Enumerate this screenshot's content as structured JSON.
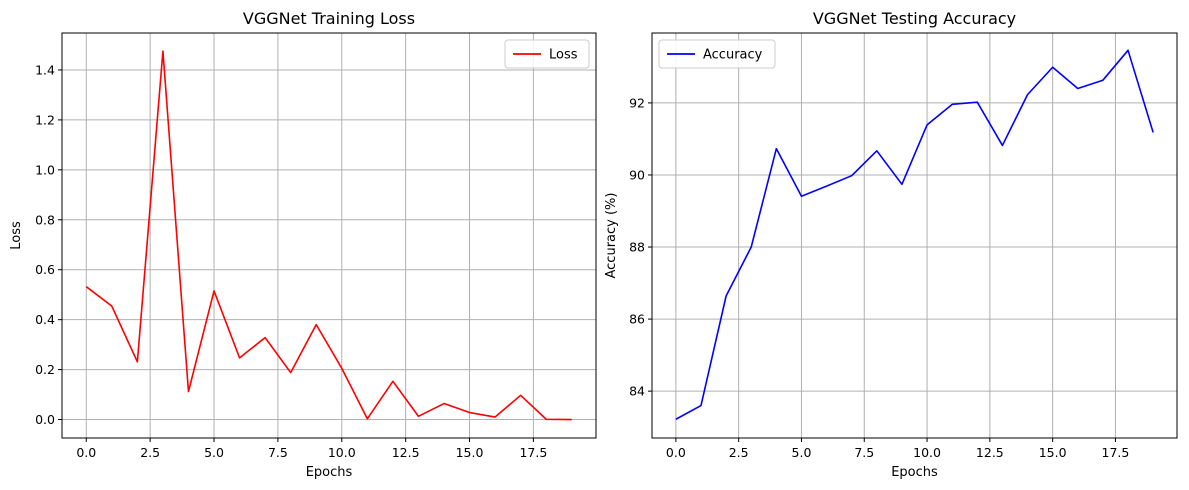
{
  "chart_data": [
    {
      "type": "line",
      "title": "VGGNet Training Loss",
      "xlabel": "Epochs",
      "ylabel": "Loss",
      "xlim": [
        -0.95,
        19.95
      ],
      "ylim": [
        -0.074,
        1.548
      ],
      "xticks": [
        0.0,
        2.5,
        5.0,
        7.5,
        10.0,
        12.5,
        15.0,
        17.5
      ],
      "xtick_labels": [
        "0.0",
        "2.5",
        "5.0",
        "7.5",
        "10.0",
        "12.5",
        "15.0",
        "17.5"
      ],
      "yticks": [
        0.0,
        0.2,
        0.4,
        0.6,
        0.8,
        1.0,
        1.2,
        1.4
      ],
      "ytick_labels": [
        "0.0",
        "0.2",
        "0.4",
        "0.6",
        "0.8",
        "1.0",
        "1.2",
        "1.4"
      ],
      "grid": true,
      "legend": "top-right",
      "x": [
        0,
        1,
        2,
        3,
        4,
        5,
        6,
        7,
        8,
        9,
        10,
        11,
        12,
        13,
        14,
        15,
        16,
        17,
        18,
        19
      ],
      "series": [
        {
          "name": "Loss",
          "color": "#ff0000",
          "values": [
            0.532,
            0.454,
            0.231,
            1.475,
            0.112,
            0.515,
            0.247,
            0.328,
            0.188,
            0.38,
            0.205,
            0.003,
            0.153,
            0.013,
            0.064,
            0.028,
            0.01,
            0.097,
            0.001,
            0.0
          ]
        }
      ]
    },
    {
      "type": "line",
      "title": "VGGNet Testing Accuracy",
      "xlabel": "Epochs",
      "ylabel": "Accuracy (%)",
      "xlim": [
        -0.95,
        19.95
      ],
      "ylim": [
        82.7,
        93.94
      ],
      "xticks": [
        0.0,
        2.5,
        5.0,
        7.5,
        10.0,
        12.5,
        15.0,
        17.5
      ],
      "xtick_labels": [
        "0.0",
        "2.5",
        "5.0",
        "7.5",
        "10.0",
        "12.5",
        "15.0",
        "17.5"
      ],
      "yticks": [
        84,
        86,
        88,
        90,
        92
      ],
      "ytick_labels": [
        "84",
        "86",
        "88",
        "90",
        "92"
      ],
      "grid": true,
      "legend": "top-left",
      "x": [
        0,
        1,
        2,
        3,
        4,
        5,
        6,
        7,
        8,
        9,
        10,
        11,
        12,
        13,
        14,
        15,
        16,
        17,
        18,
        19
      ],
      "series": [
        {
          "name": "Accuracy",
          "color": "#0000ff",
          "values": [
            83.22,
            83.6,
            86.64,
            88.0,
            90.73,
            89.41,
            89.69,
            89.98,
            90.67,
            89.74,
            91.39,
            91.96,
            92.02,
            90.82,
            92.23,
            92.99,
            92.4,
            92.63,
            93.46,
            91.18
          ]
        }
      ]
    }
  ]
}
